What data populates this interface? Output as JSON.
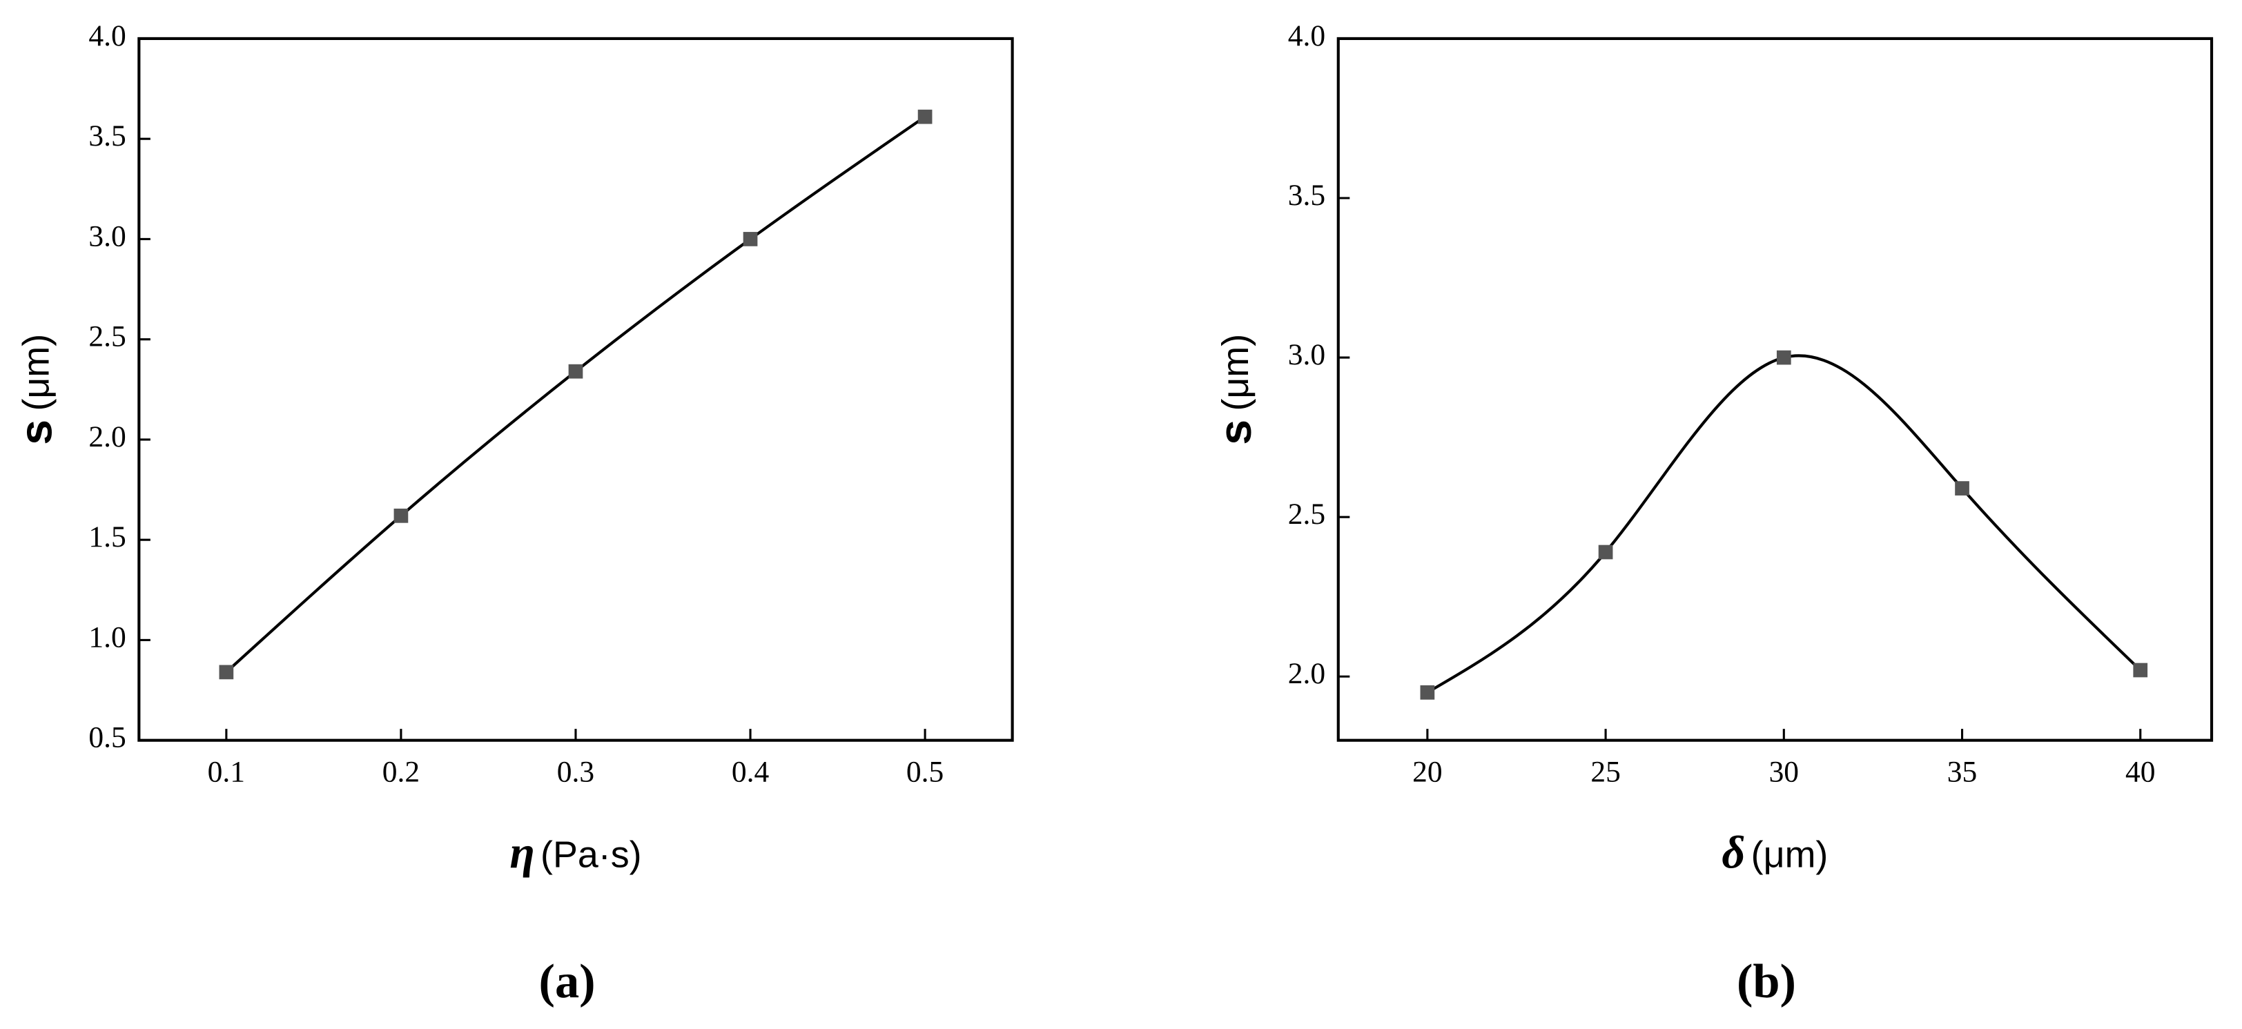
{
  "chart_data": [
    {
      "type": "line",
      "caption": "(a)",
      "xlabel_symbol": "η",
      "xlabel_unit": "(Pa·s)",
      "ylabel_symbol": "s",
      "ylabel_unit": "(μm)",
      "x": [
        0.1,
        0.2,
        0.3,
        0.4,
        0.5
      ],
      "values": [
        0.84,
        1.62,
        2.34,
        3.0,
        3.61
      ],
      "color": "#555555",
      "line_color": "#000000",
      "smooth": true,
      "xlim": [
        0.05,
        0.55
      ],
      "xticks": [
        {
          "value": 0.1,
          "label": "0.1"
        },
        {
          "value": 0.2,
          "label": "0.2"
        },
        {
          "value": 0.3,
          "label": "0.3"
        },
        {
          "value": 0.4,
          "label": "0.4"
        },
        {
          "value": 0.5,
          "label": "0.5"
        }
      ],
      "ylim": [
        0.5,
        4.0
      ],
      "yticks": [
        0.5,
        {
          "value": 1.0,
          "label": "1.0"
        },
        1.5,
        {
          "value": 2.0,
          "label": "2.0"
        },
        2.5,
        {
          "value": 3.0,
          "label": "3.0"
        },
        3.5,
        {
          "value": 4.0,
          "label": "4.0"
        }
      ]
    },
    {
      "type": "line",
      "caption": "(b)",
      "xlabel_symbol": "δ",
      "xlabel_unit": "(μm)",
      "ylabel_symbol": "s",
      "ylabel_unit": "(μm)",
      "x": [
        20,
        25,
        30,
        35,
        40
      ],
      "values": [
        1.95,
        2.39,
        3.0,
        2.59,
        2.02
      ],
      "color": "#555555",
      "line_color": "#000000",
      "smooth": true,
      "xlim": [
        17.5,
        42
      ],
      "xticks": [
        20,
        25,
        30,
        35,
        40
      ],
      "ylim": [
        1.8,
        4.0
      ],
      "yticks": [
        {
          "value": 2.0,
          "label": "2.0"
        },
        2.5,
        {
          "value": 3.0,
          "label": "3.0"
        },
        3.5,
        {
          "value": 4.0,
          "label": "4.0"
        }
      ]
    }
  ]
}
